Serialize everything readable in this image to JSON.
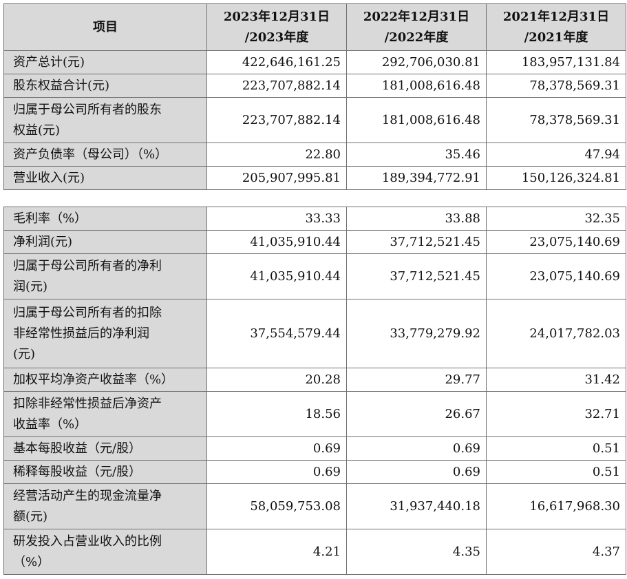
{
  "headers": {
    "item": "项目",
    "col1": [
      "2023年12月31日",
      "/2023年度"
    ],
    "col2": [
      "2022年12月31日",
      "/2022年度"
    ],
    "col3": [
      "2021年12月31日",
      "/2021年度"
    ]
  },
  "table1": [
    {
      "label": "资产总计(元)",
      "v": [
        "422,646,161.25",
        "292,706,030.81",
        "183,957,131.84"
      ]
    },
    {
      "label": "股东权益合计(元)",
      "v": [
        "223,707,882.14",
        "181,008,616.48",
        "78,378,569.31"
      ]
    },
    {
      "label": [
        "归属于母公司所有者的股东",
        "权益(元)"
      ],
      "v": [
        "223,707,882.14",
        "181,008,616.48",
        "78,378,569.31"
      ]
    },
    {
      "label": "资产负债率（母公司）（%）",
      "v": [
        "22.80",
        "35.46",
        "47.94"
      ]
    },
    {
      "label": "营业收入(元)",
      "v": [
        "205,907,995.81",
        "189,394,772.91",
        "150,126,324.81"
      ]
    }
  ],
  "table2": [
    {
      "label": "毛利率（%）",
      "v": [
        "33.33",
        "33.88",
        "32.35"
      ]
    },
    {
      "label": "净利润(元)",
      "v": [
        "41,035,910.44",
        "37,712,521.45",
        "23,075,140.69"
      ]
    },
    {
      "label": [
        "归属于母公司所有者的净利",
        "润(元)"
      ],
      "v": [
        "41,035,910.44",
        "37,712,521.45",
        "23,075,140.69"
      ]
    },
    {
      "label": [
        "归属于母公司所有者的扣除",
        "非经常性损益后的净利润",
        "(元)"
      ],
      "v": [
        "37,554,579.44",
        "33,779,279.92",
        "24,017,782.03"
      ]
    },
    {
      "label": "加权平均净资产收益率（%）",
      "v": [
        "20.28",
        "29.77",
        "31.42"
      ]
    },
    {
      "label": [
        "扣除非经常性损益后净资产",
        "收益率（%）"
      ],
      "v": [
        "18.56",
        "26.67",
        "32.71"
      ]
    },
    {
      "label": "基本每股收益（元/股）",
      "v": [
        "0.69",
        "0.69",
        "0.51"
      ]
    },
    {
      "label": "稀释每股收益（元/股）",
      "v": [
        "0.69",
        "0.69",
        "0.51"
      ]
    },
    {
      "label": [
        "经营活动产生的现金流量净",
        "额(元)"
      ],
      "v": [
        "58,059,753.08",
        "31,937,440.18",
        "16,617,968.30"
      ]
    },
    {
      "label": [
        "研发投入占营业收入的比例",
        "（%）"
      ],
      "v": [
        "4.21",
        "4.35",
        "4.37"
      ]
    }
  ]
}
